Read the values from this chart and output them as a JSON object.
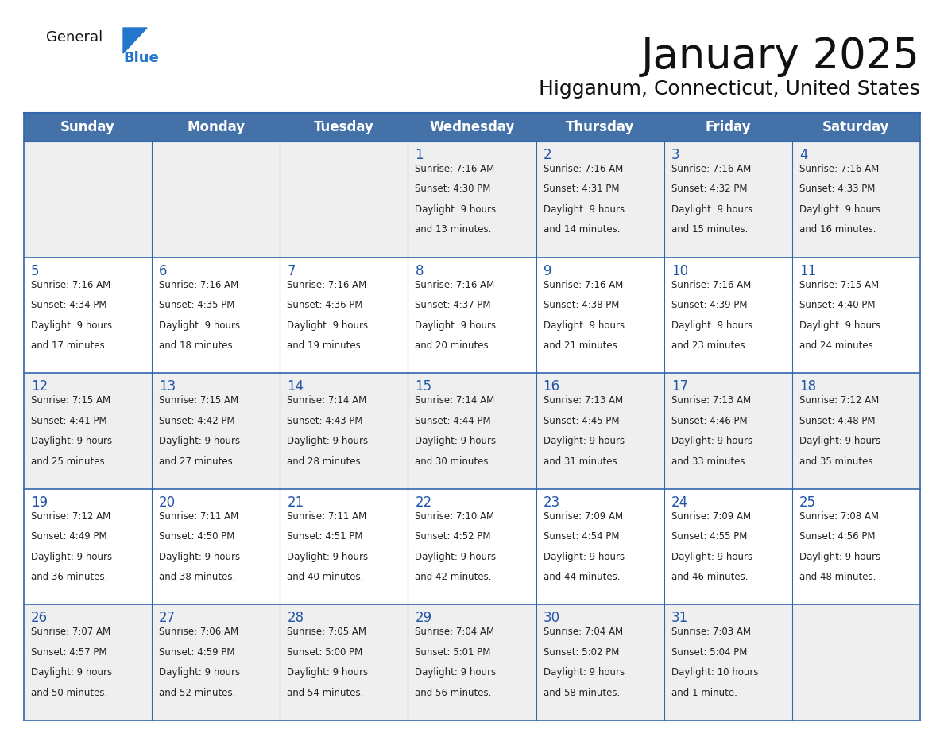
{
  "title": "January 2025",
  "subtitle": "Higganum, Connecticut, United States",
  "days_of_week": [
    "Sunday",
    "Monday",
    "Tuesday",
    "Wednesday",
    "Thursday",
    "Friday",
    "Saturday"
  ],
  "header_bg": "#4472a8",
  "header_text": "#ffffff",
  "cell_bg_odd": "#efefef",
  "cell_bg_even": "#ffffff",
  "day_num_color": "#2255aa",
  "cell_text_color": "#222222",
  "grid_color": "#3366aa",
  "title_color": "#111111",
  "subtitle_color": "#111111",
  "logo_general_color": "#111111",
  "logo_blue_color": "#2277cc",
  "weeks": [
    [
      {
        "day": "",
        "sunrise": "",
        "sunset": "",
        "daylight1": "",
        "daylight2": ""
      },
      {
        "day": "",
        "sunrise": "",
        "sunset": "",
        "daylight1": "",
        "daylight2": ""
      },
      {
        "day": "",
        "sunrise": "",
        "sunset": "",
        "daylight1": "",
        "daylight2": ""
      },
      {
        "day": "1",
        "sunrise": "7:16 AM",
        "sunset": "4:30 PM",
        "daylight1": "9 hours",
        "daylight2": "and 13 minutes."
      },
      {
        "day": "2",
        "sunrise": "7:16 AM",
        "sunset": "4:31 PM",
        "daylight1": "9 hours",
        "daylight2": "and 14 minutes."
      },
      {
        "day": "3",
        "sunrise": "7:16 AM",
        "sunset": "4:32 PM",
        "daylight1": "9 hours",
        "daylight2": "and 15 minutes."
      },
      {
        "day": "4",
        "sunrise": "7:16 AM",
        "sunset": "4:33 PM",
        "daylight1": "9 hours",
        "daylight2": "and 16 minutes."
      }
    ],
    [
      {
        "day": "5",
        "sunrise": "7:16 AM",
        "sunset": "4:34 PM",
        "daylight1": "9 hours",
        "daylight2": "and 17 minutes."
      },
      {
        "day": "6",
        "sunrise": "7:16 AM",
        "sunset": "4:35 PM",
        "daylight1": "9 hours",
        "daylight2": "and 18 minutes."
      },
      {
        "day": "7",
        "sunrise": "7:16 AM",
        "sunset": "4:36 PM",
        "daylight1": "9 hours",
        "daylight2": "and 19 minutes."
      },
      {
        "day": "8",
        "sunrise": "7:16 AM",
        "sunset": "4:37 PM",
        "daylight1": "9 hours",
        "daylight2": "and 20 minutes."
      },
      {
        "day": "9",
        "sunrise": "7:16 AM",
        "sunset": "4:38 PM",
        "daylight1": "9 hours",
        "daylight2": "and 21 minutes."
      },
      {
        "day": "10",
        "sunrise": "7:16 AM",
        "sunset": "4:39 PM",
        "daylight1": "9 hours",
        "daylight2": "and 23 minutes."
      },
      {
        "day": "11",
        "sunrise": "7:15 AM",
        "sunset": "4:40 PM",
        "daylight1": "9 hours",
        "daylight2": "and 24 minutes."
      }
    ],
    [
      {
        "day": "12",
        "sunrise": "7:15 AM",
        "sunset": "4:41 PM",
        "daylight1": "9 hours",
        "daylight2": "and 25 minutes."
      },
      {
        "day": "13",
        "sunrise": "7:15 AM",
        "sunset": "4:42 PM",
        "daylight1": "9 hours",
        "daylight2": "and 27 minutes."
      },
      {
        "day": "14",
        "sunrise": "7:14 AM",
        "sunset": "4:43 PM",
        "daylight1": "9 hours",
        "daylight2": "and 28 minutes."
      },
      {
        "day": "15",
        "sunrise": "7:14 AM",
        "sunset": "4:44 PM",
        "daylight1": "9 hours",
        "daylight2": "and 30 minutes."
      },
      {
        "day": "16",
        "sunrise": "7:13 AM",
        "sunset": "4:45 PM",
        "daylight1": "9 hours",
        "daylight2": "and 31 minutes."
      },
      {
        "day": "17",
        "sunrise": "7:13 AM",
        "sunset": "4:46 PM",
        "daylight1": "9 hours",
        "daylight2": "and 33 minutes."
      },
      {
        "day": "18",
        "sunrise": "7:12 AM",
        "sunset": "4:48 PM",
        "daylight1": "9 hours",
        "daylight2": "and 35 minutes."
      }
    ],
    [
      {
        "day": "19",
        "sunrise": "7:12 AM",
        "sunset": "4:49 PM",
        "daylight1": "9 hours",
        "daylight2": "and 36 minutes."
      },
      {
        "day": "20",
        "sunrise": "7:11 AM",
        "sunset": "4:50 PM",
        "daylight1": "9 hours",
        "daylight2": "and 38 minutes."
      },
      {
        "day": "21",
        "sunrise": "7:11 AM",
        "sunset": "4:51 PM",
        "daylight1": "9 hours",
        "daylight2": "and 40 minutes."
      },
      {
        "day": "22",
        "sunrise": "7:10 AM",
        "sunset": "4:52 PM",
        "daylight1": "9 hours",
        "daylight2": "and 42 minutes."
      },
      {
        "day": "23",
        "sunrise": "7:09 AM",
        "sunset": "4:54 PM",
        "daylight1": "9 hours",
        "daylight2": "and 44 minutes."
      },
      {
        "day": "24",
        "sunrise": "7:09 AM",
        "sunset": "4:55 PM",
        "daylight1": "9 hours",
        "daylight2": "and 46 minutes."
      },
      {
        "day": "25",
        "sunrise": "7:08 AM",
        "sunset": "4:56 PM",
        "daylight1": "9 hours",
        "daylight2": "and 48 minutes."
      }
    ],
    [
      {
        "day": "26",
        "sunrise": "7:07 AM",
        "sunset": "4:57 PM",
        "daylight1": "9 hours",
        "daylight2": "and 50 minutes."
      },
      {
        "day": "27",
        "sunrise": "7:06 AM",
        "sunset": "4:59 PM",
        "daylight1": "9 hours",
        "daylight2": "and 52 minutes."
      },
      {
        "day": "28",
        "sunrise": "7:05 AM",
        "sunset": "5:00 PM",
        "daylight1": "9 hours",
        "daylight2": "and 54 minutes."
      },
      {
        "day": "29",
        "sunrise": "7:04 AM",
        "sunset": "5:01 PM",
        "daylight1": "9 hours",
        "daylight2": "and 56 minutes."
      },
      {
        "day": "30",
        "sunrise": "7:04 AM",
        "sunset": "5:02 PM",
        "daylight1": "9 hours",
        "daylight2": "and 58 minutes."
      },
      {
        "day": "31",
        "sunrise": "7:03 AM",
        "sunset": "5:04 PM",
        "daylight1": "10 hours",
        "daylight2": "and 1 minute."
      },
      {
        "day": "",
        "sunrise": "",
        "sunset": "",
        "daylight1": "",
        "daylight2": ""
      }
    ]
  ]
}
